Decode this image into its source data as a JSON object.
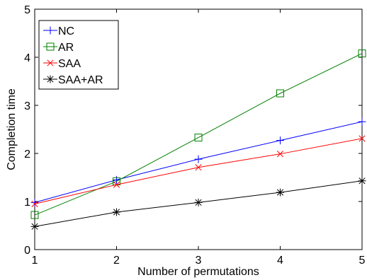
{
  "chart_data": {
    "type": "line",
    "xlabel": "Number of permutations",
    "ylabel": "Completion time",
    "xlim": [
      1,
      5
    ],
    "ylim": [
      0,
      5
    ],
    "x_ticks": [
      "1",
      "2",
      "3",
      "4",
      "5"
    ],
    "y_ticks": [
      "0",
      "1",
      "2",
      "3",
      "4",
      "5"
    ],
    "grid": false,
    "legend_position": "top-left",
    "x": [
      1,
      2,
      3,
      4,
      5
    ],
    "series": [
      {
        "name": "NC",
        "values": [
          0.98,
          1.45,
          1.88,
          2.27,
          2.66
        ],
        "color": "#0000ff",
        "marker": "plus"
      },
      {
        "name": "AR",
        "values": [
          0.72,
          1.42,
          2.33,
          3.25,
          4.08
        ],
        "color": "#008000",
        "marker": "square"
      },
      {
        "name": "SAA",
        "values": [
          0.95,
          1.35,
          1.71,
          1.99,
          2.31
        ],
        "color": "#ff0000",
        "marker": "x"
      },
      {
        "name": "SAA+AR",
        "values": [
          0.48,
          0.78,
          0.98,
          1.19,
          1.43
        ],
        "color": "#000000",
        "marker": "star"
      }
    ]
  }
}
